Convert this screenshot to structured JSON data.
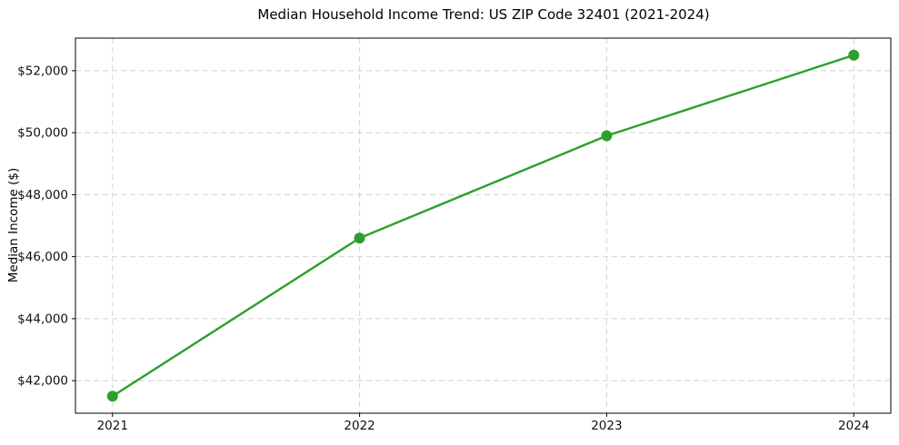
{
  "chart_data": {
    "type": "line",
    "title": "Median Household Income Trend: US ZIP Code 32401 (2021-2024)",
    "xlabel": "",
    "ylabel": "Median Income ($)",
    "x": [
      2021,
      2022,
      2023,
      2024
    ],
    "x_tick_labels": [
      "2021",
      "2022",
      "2023",
      "2024"
    ],
    "series": [
      {
        "name": "Median Household Income",
        "values": [
          41500,
          46600,
          49900,
          52500
        ],
        "color": "#2ca02c",
        "marker": "circle"
      }
    ],
    "y_ticks": [
      42000,
      44000,
      46000,
      48000,
      50000,
      52000
    ],
    "y_tick_labels": [
      "$42,000",
      "$44,000",
      "$46,000",
      "$48,000",
      "$50,000",
      "$52,000"
    ],
    "xlim": [
      2020.85,
      2024.15
    ],
    "ylim": [
      40950,
      53050
    ],
    "grid": true,
    "grid_style": "dashed",
    "grid_color": "#d4d4d4",
    "line_width": 2.4,
    "marker_radius": 6,
    "legend": false,
    "background_color": "#ffffff",
    "spine_color": "#000000"
  }
}
